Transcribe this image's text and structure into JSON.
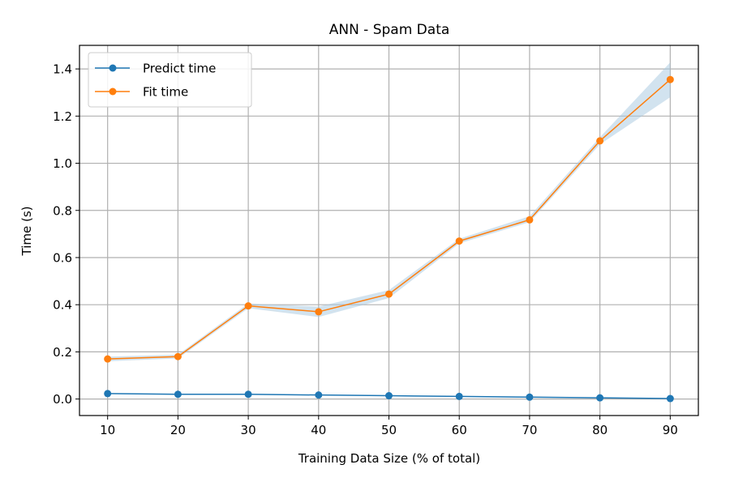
{
  "chart_data": {
    "type": "line",
    "title": "ANN - Spam Data",
    "xlabel": "Training Data Size (% of total)",
    "ylabel": "Time (s)",
    "x": [
      10,
      20,
      30,
      40,
      50,
      60,
      70,
      80,
      90
    ],
    "xlim": [
      6,
      94
    ],
    "ylim": [
      -0.07,
      1.5
    ],
    "xticks": [
      "10",
      "20",
      "30",
      "40",
      "50",
      "60",
      "70",
      "80",
      "90"
    ],
    "yticks": [
      "0.0",
      "0.2",
      "0.4",
      "0.6",
      "0.8",
      "1.0",
      "1.2",
      "1.4"
    ],
    "grid": true,
    "legend_position": "upper-left",
    "series": [
      {
        "name": "Predict time",
        "color": "#1f77b4",
        "values": [
          0.023,
          0.02,
          0.02,
          0.017,
          0.014,
          0.011,
          0.008,
          0.005,
          0.002
        ],
        "band_lower": [
          0.021,
          0.018,
          0.018,
          0.015,
          0.012,
          0.009,
          0.006,
          0.003,
          0.001
        ],
        "band_upper": [
          0.025,
          0.022,
          0.022,
          0.019,
          0.016,
          0.013,
          0.01,
          0.007,
          0.003
        ]
      },
      {
        "name": "Fit time",
        "color": "#ff7f0e",
        "band_color": "#a6c8e0",
        "values": [
          0.17,
          0.18,
          0.395,
          0.37,
          0.445,
          0.67,
          0.76,
          1.095,
          1.355
        ],
        "band_lower": [
          0.16,
          0.172,
          0.385,
          0.348,
          0.428,
          0.66,
          0.75,
          1.08,
          1.28
        ],
        "band_upper": [
          0.18,
          0.188,
          0.405,
          0.392,
          0.462,
          0.68,
          0.775,
          1.11,
          1.428
        ]
      }
    ]
  }
}
